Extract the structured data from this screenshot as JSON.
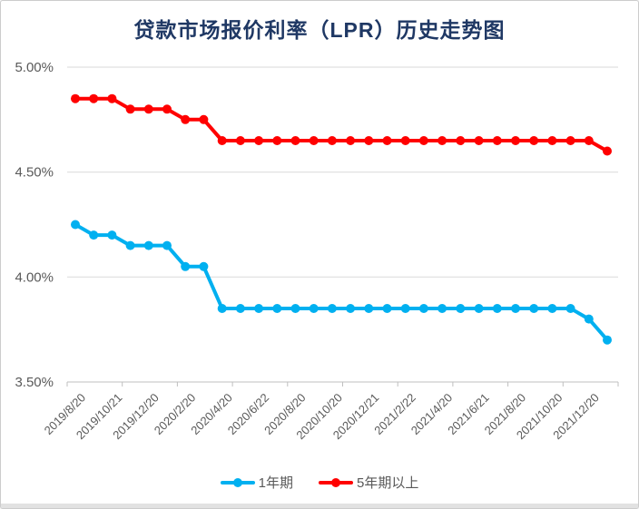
{
  "title": "贷款市场报价利率（LPR）历史走势图",
  "colors": {
    "title": "#1F3864",
    "gridline": "#D9D9D9",
    "axis": "#BFBFBF",
    "axis_text": "#595959",
    "legend_text": "#595959",
    "series_1y": "#00B0F0",
    "series_5y": "#FF0000"
  },
  "chart_data": {
    "type": "line",
    "title": "贷款市场报价利率（LPR）历史走势图",
    "xlabel": "",
    "ylabel": "",
    "ylim": [
      3.5,
      5.0
    ],
    "y_ticks": [
      "5.00%",
      "4.50%",
      "4.00%",
      "3.50%"
    ],
    "grid": true,
    "legend_position": "bottom",
    "num_points": 30,
    "tick_label_interval": 2,
    "x_tick_labels": [
      "2019/8/20",
      "2019/10/21",
      "2019/12/20",
      "2020/2/20",
      "2020/4/20",
      "2020/6/22",
      "2020/8/20",
      "2020/10/20",
      "2020/12/21",
      "2021/2/22",
      "2021/4/20",
      "2021/6/21",
      "2021/8/20",
      "2021/10/20",
      "2021/12/20"
    ],
    "value_unit": "%",
    "series": [
      {
        "name": "1年期",
        "color": "#00B0F0",
        "values": [
          4.25,
          4.2,
          4.2,
          4.15,
          4.15,
          4.15,
          4.05,
          4.05,
          3.85,
          3.85,
          3.85,
          3.85,
          3.85,
          3.85,
          3.85,
          3.85,
          3.85,
          3.85,
          3.85,
          3.85,
          3.85,
          3.85,
          3.85,
          3.85,
          3.85,
          3.85,
          3.85,
          3.85,
          3.8,
          3.7
        ]
      },
      {
        "name": "5年期以上",
        "color": "#FF0000",
        "values": [
          4.85,
          4.85,
          4.85,
          4.8,
          4.8,
          4.8,
          4.75,
          4.75,
          4.65,
          4.65,
          4.65,
          4.65,
          4.65,
          4.65,
          4.65,
          4.65,
          4.65,
          4.65,
          4.65,
          4.65,
          4.65,
          4.65,
          4.65,
          4.65,
          4.65,
          4.65,
          4.65,
          4.65,
          4.65,
          4.6
        ]
      }
    ]
  }
}
